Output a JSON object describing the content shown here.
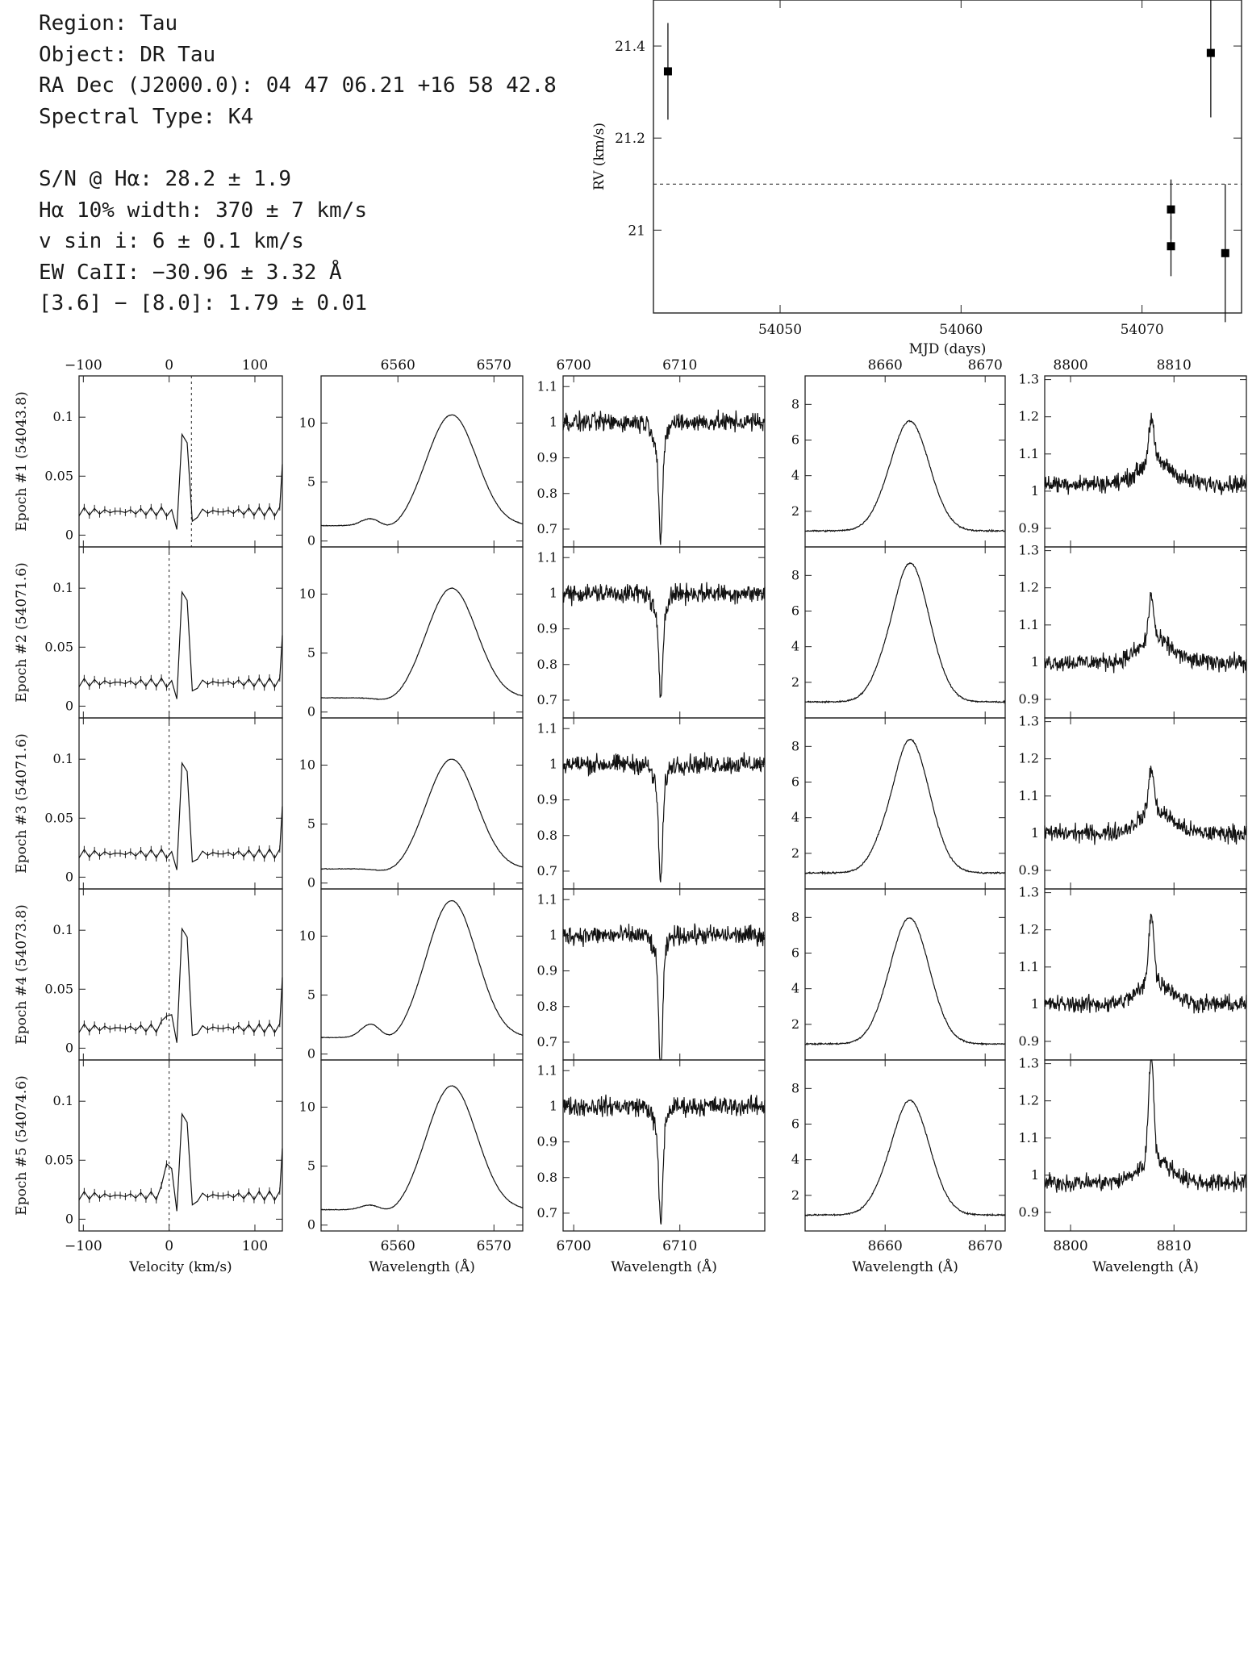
{
  "info": {
    "region": "Region: Tau",
    "object": "Object: DR Tau",
    "radec": "RA Dec (J2000.0): 04 47 06.21 +16 58 42.8",
    "sptype": "Spectral Type: K4",
    "sn": "S/N @ Hα: 28.2 ± 1.9",
    "ha_width": "Hα 10% width: 370 ± 7 km/s",
    "vsini": "v sin i: 6 ± 0.1 km/s",
    "ew": "EW CaII: −30.96 ± 3.32 Å",
    "irac": "[3.6] − [8.0]: 1.79 ± 0.01"
  },
  "chart_data": [
    {
      "id": "rv",
      "type": "scatter",
      "xlabel": "MJD (days)",
      "ylabel": "RV (km/s)",
      "xlim": [
        54043,
        54075.5
      ],
      "ylim": [
        20.82,
        21.5
      ],
      "xticks": [
        54050,
        54060,
        54070
      ],
      "yticks": [
        21,
        21.2,
        21.4
      ],
      "mean_line": 21.1,
      "points": [
        {
          "x": 54043.8,
          "y": 21.345,
          "err": 0.105
        },
        {
          "x": 54071.6,
          "y": 21.045,
          "err": 0.065
        },
        {
          "x": 54071.6,
          "y": 20.965,
          "err": 0.065
        },
        {
          "x": 54073.8,
          "y": 21.385,
          "err": 0.14
        },
        {
          "x": 54074.6,
          "y": 20.95,
          "err": 0.15
        }
      ]
    },
    {
      "id": "grid",
      "type": "line",
      "epochs": [
        {
          "label": "Epoch #1 (54043.8)",
          "shift": 14,
          "amp": 0.085,
          "base": 0.02,
          "side": 0,
          "ha": {
            "peak": 10.7,
            "base": 1.3,
            "bump": 0.65
          },
          "li": {
            "depth": 0.25
          },
          "ca": {
            "peak": 7.1,
            "wing": 6.4
          },
          "ca2": {
            "amp": 0.12,
            "level": 1.02
          }
        },
        {
          "label": "Epoch #2 (54071.6)",
          "shift": 0,
          "amp": 0.1,
          "base": 0.02,
          "side": 0,
          "ha": {
            "peak": 10.5,
            "base": 1.2,
            "bump": 0.0
          },
          "li": {
            "depth": 0.21
          },
          "ca": {
            "peak": 8.8,
            "wing": 6.6
          },
          "ca2": {
            "amp": 0.12,
            "level": 1.0
          }
        },
        {
          "label": "Epoch #3 (54071.6)",
          "shift": 0,
          "amp": 0.1,
          "base": 0.02,
          "side": 0,
          "ha": {
            "peak": 10.5,
            "base": 1.2,
            "bump": 0.0
          },
          "li": {
            "depth": 0.25
          },
          "ca": {
            "peak": 8.5,
            "wing": 6.2
          },
          "ca2": {
            "amp": 0.12,
            "level": 1.0
          }
        },
        {
          "label": "Epoch #4 (54073.8)",
          "shift": 0,
          "amp": 0.11,
          "base": 0.017,
          "side": 0.016,
          "ha": {
            "peak": 13.0,
            "base": 1.4,
            "bump": 1.2
          },
          "li": {
            "depth": 0.29
          },
          "ca": {
            "peak": 8.0,
            "wing": 7.4
          },
          "ca2": {
            "amp": 0.19,
            "level": 1.0
          }
        },
        {
          "label": "Epoch #5 (54074.6)",
          "shift": 0,
          "amp": 0.09,
          "base": 0.02,
          "side": 0.035,
          "ha": {
            "peak": 11.8,
            "base": 1.3,
            "bump": 0.45
          },
          "li": {
            "depth": 0.25
          },
          "ca": {
            "peak": 7.4,
            "wing": 6.0
          },
          "ca2": {
            "amp": 0.29,
            "level": 0.98
          }
        }
      ],
      "columns": [
        {
          "id": "vel",
          "xlabel": "Velocity (km/s)",
          "xlim": [
            -105,
            132
          ],
          "xticks": [
            -100,
            0,
            100
          ],
          "ylim": [
            -0.01,
            0.135
          ],
          "yticks": [
            0,
            0.05,
            0.1
          ]
        },
        {
          "id": "ha",
          "xlabel": "Wavelength (Å)",
          "xlim": [
            6552,
            6573
          ],
          "xticks": [
            6560,
            6570
          ],
          "ylim": [
            -0.5,
            14
          ],
          "yticks": [
            0,
            5,
            10
          ]
        },
        {
          "id": "li",
          "xlabel": "Wavelength (Å)",
          "xlim": [
            6699,
            6718
          ],
          "xticks": [
            6700,
            6710
          ],
          "ylim": [
            0.65,
            1.13
          ],
          "yticks": [
            0.7,
            0.8,
            0.9,
            1,
            1.1
          ]
        },
        {
          "id": "ca",
          "xlabel": "Wavelength (Å)",
          "xlim": [
            8652,
            8672
          ],
          "xticks": [
            8660,
            8670
          ],
          "ylim": [
            0,
            9.6
          ],
          "yticks": [
            2,
            4,
            6,
            8
          ]
        },
        {
          "id": "ca2",
          "xlabel": "Wavelength (Å)",
          "xlim": [
            8797.5,
            8817
          ],
          "xticks": [
            8800,
            8810
          ],
          "ylim": [
            0.85,
            1.31
          ],
          "yticks": [
            0.9,
            1,
            1.1,
            1.2,
            1.3
          ]
        }
      ]
    }
  ]
}
